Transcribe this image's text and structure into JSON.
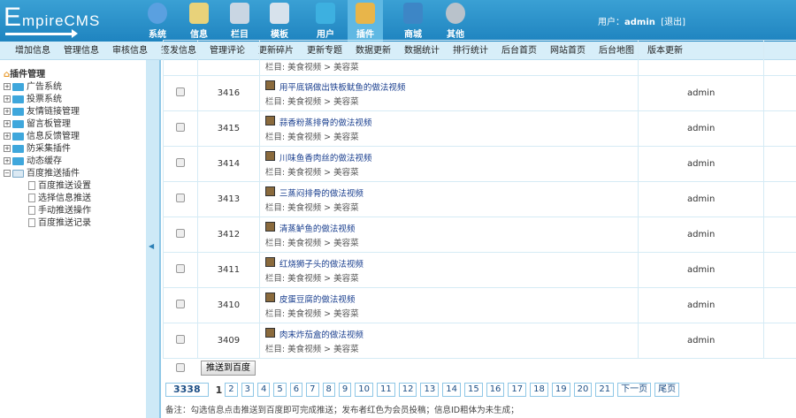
{
  "header": {
    "logo": "EmpireCMS",
    "user_label": "用户：",
    "user": "admin",
    "logout": "[退出]",
    "nav": [
      {
        "label": "系统",
        "icon": "globe-icon",
        "color": "#5aa0e0"
      },
      {
        "label": "信息",
        "icon": "notepad-icon",
        "color": "#e8d27a"
      },
      {
        "label": "栏目",
        "icon": "folder-icon",
        "color": "#c9d6e3"
      },
      {
        "label": "模板",
        "icon": "window-icon",
        "color": "#d7e2ec"
      },
      {
        "label": "用户",
        "icon": "user-icon",
        "color": "#3db0e0"
      },
      {
        "label": "插件",
        "icon": "tools-icon",
        "color": "#e8b54a",
        "active": true
      },
      {
        "label": "商城",
        "icon": "card-icon",
        "color": "#3d86c6"
      },
      {
        "label": "其他",
        "icon": "gear-icon",
        "color": "#b9c2cb"
      }
    ]
  },
  "subnav": [
    "增加信息",
    "管理信息",
    "审核信息",
    "签发信息",
    "管理评论",
    "更新碎片",
    "更新专题",
    "数据更新",
    "数据统计",
    "排行统计",
    "后台首页",
    "网站首页",
    "后台地图",
    "版本更新"
  ],
  "sidebar": {
    "root": "插件管理",
    "folders": [
      "广告系统",
      "投票系统",
      "友情链接管理",
      "留言板管理",
      "信息反馈管理",
      "防采集插件",
      "动态缓存"
    ],
    "open_folder": "百度推送插件",
    "leaves": [
      "百度推送设置",
      "选择信息推送",
      "手动推送操作",
      "百度推送记录"
    ]
  },
  "table": {
    "partial_category": "栏目: 美食视频 > 美容菜",
    "rows": [
      {
        "id": "3416",
        "title": "用平底锅做出铁板鱿鱼的做法视频",
        "category": "栏目: 美食视频 > 美容菜",
        "author": "admin"
      },
      {
        "id": "3415",
        "title": "蒜香粉蒸排骨的做法视频",
        "category": "栏目: 美食视频 > 美容菜",
        "author": "admin"
      },
      {
        "id": "3414",
        "title": "川味鱼香肉丝的做法视频",
        "category": "栏目: 美食视频 > 美容菜",
        "author": "admin"
      },
      {
        "id": "3413",
        "title": "三蒸闷排骨的做法视频",
        "category": "栏目: 美食视频 > 美容菜",
        "author": "admin"
      },
      {
        "id": "3412",
        "title": "清蒸鲈鱼的做法视频",
        "category": "栏目: 美食视频 > 美容菜",
        "author": "admin"
      },
      {
        "id": "3411",
        "title": "红烧狮子头的做法视频",
        "category": "栏目: 美食视频 > 美容菜",
        "author": "admin"
      },
      {
        "id": "3410",
        "title": "皮蛋豆腐的做法视频",
        "category": "栏目: 美食视频 > 美容菜",
        "author": "admin"
      },
      {
        "id": "3409",
        "title": "肉末炸茄盒的做法视频",
        "category": "栏目: 美食视频 > 美容菜",
        "author": "admin"
      }
    ]
  },
  "actions": {
    "push_button": "推送到百度"
  },
  "pager": {
    "total": "3338",
    "current": "1",
    "pages": [
      "2",
      "3",
      "4",
      "5",
      "6",
      "7",
      "8",
      "9",
      "10",
      "11",
      "12",
      "13",
      "14",
      "15",
      "16",
      "17",
      "18",
      "19",
      "20",
      "21"
    ],
    "next": "下一页",
    "last": "尾页"
  },
  "note": "备注：勾选信息点击推送到百度即可完成推送；发布者红色为会员投稿；信息ID粗体为未生成；"
}
